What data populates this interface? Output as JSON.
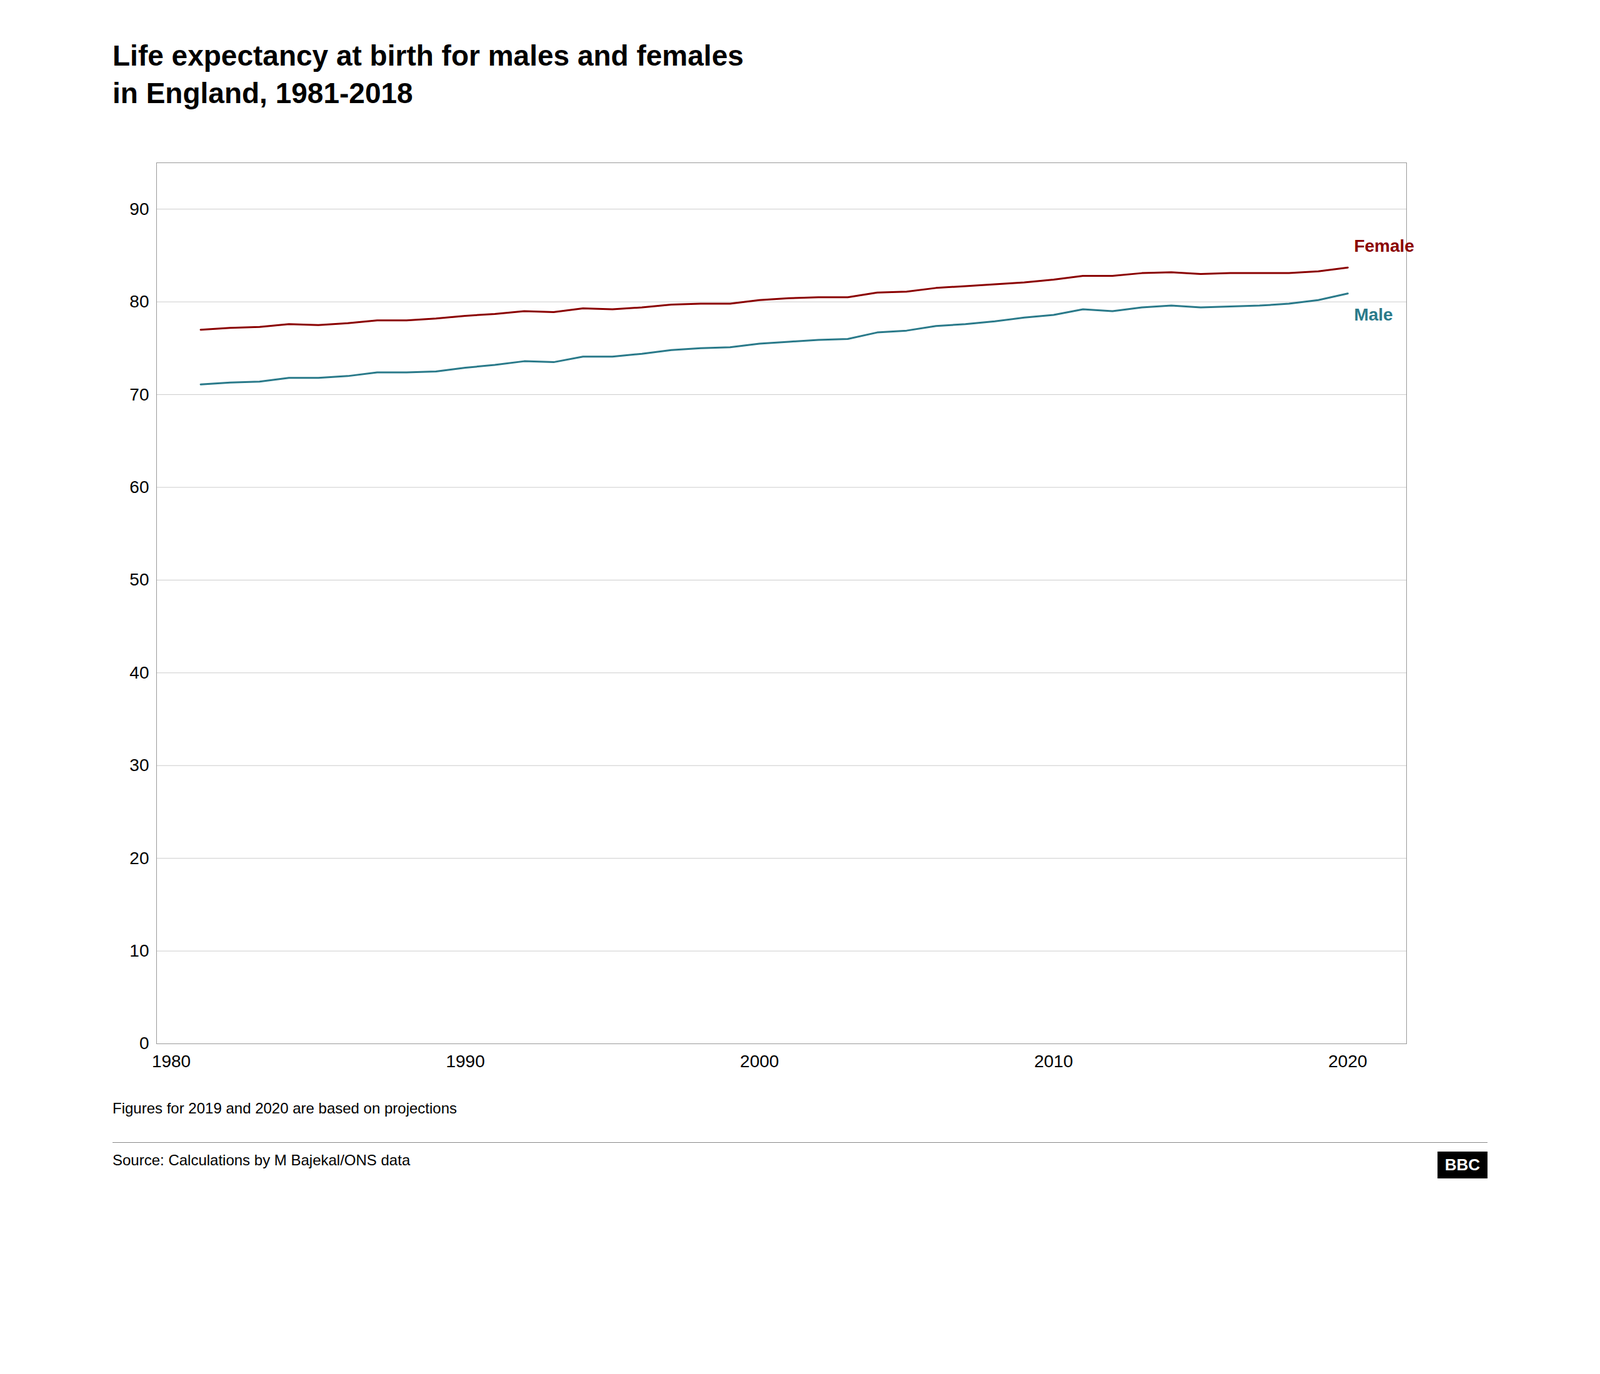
{
  "chart_data": {
    "type": "line",
    "title": "Life expectancy at birth for males and females",
    "subtitle": "in England, 1981-2018",
    "x": [
      1981,
      1982,
      1983,
      1984,
      1985,
      1986,
      1987,
      1988,
      1989,
      1990,
      1991,
      1992,
      1993,
      1994,
      1995,
      1996,
      1997,
      1998,
      1999,
      2000,
      2001,
      2002,
      2003,
      2004,
      2005,
      2006,
      2007,
      2008,
      2009,
      2010,
      2011,
      2012,
      2013,
      2014,
      2015,
      2016,
      2017,
      2018,
      2019,
      2020
    ],
    "series": [
      {
        "name": "Female",
        "color": "#8b0000",
        "values": [
          77.0,
          77.2,
          77.3,
          77.6,
          77.5,
          77.7,
          78.0,
          78.0,
          78.2,
          78.5,
          78.7,
          79.0,
          78.9,
          79.3,
          79.2,
          79.4,
          79.7,
          79.8,
          79.8,
          80.2,
          80.4,
          80.5,
          80.5,
          81.0,
          81.1,
          81.5,
          81.7,
          81.9,
          82.1,
          82.4,
          82.8,
          82.8,
          83.1,
          83.2,
          83.0,
          83.1,
          83.1,
          83.1,
          83.3,
          83.7
        ]
      },
      {
        "name": "Male",
        "color": "#2a7a8a",
        "values": [
          71.1,
          71.3,
          71.4,
          71.8,
          71.8,
          72.0,
          72.4,
          72.4,
          72.5,
          72.9,
          73.2,
          73.6,
          73.5,
          74.1,
          74.1,
          74.4,
          74.8,
          75.0,
          75.1,
          75.5,
          75.7,
          75.9,
          76.0,
          76.7,
          76.9,
          77.4,
          77.6,
          77.9,
          78.3,
          78.6,
          79.2,
          79.0,
          79.4,
          79.6,
          79.4,
          79.5,
          79.6,
          79.8,
          80.2,
          80.9
        ]
      }
    ],
    "xlim": [
      1979.5,
      2022
    ],
    "xticks": [
      1980,
      1990,
      2000,
      2010,
      2020
    ],
    "ylim": [
      0,
      95
    ],
    "yticks": [
      0,
      10,
      20,
      30,
      40,
      50,
      60,
      70,
      80,
      90
    ],
    "grid": "y",
    "annotations": [
      "Figures for 2019 and 2020 are based on projections",
      "Source: Calculations by M Bajekal/ONS data",
      "BBC"
    ]
  }
}
